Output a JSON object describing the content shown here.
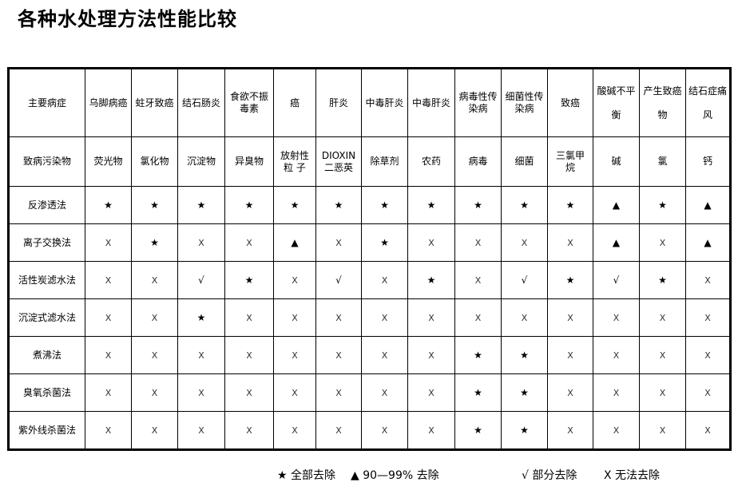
{
  "title": "各种水处理方法性能比较",
  "header_row1": {
    "label": "主要病症",
    "cells": [
      "乌脚病癌",
      "蛀牙致癌",
      "结石肠炎",
      "食欲不振\n毒素",
      "癌",
      "肝炎",
      "中毒肝炎",
      "中毒肝炎",
      "病毒性传\n染病",
      "细菌性传\n染病",
      "致癌",
      "酸碱不平\n\n衡",
      "产生致癌\n\n物",
      "结石症痛\n\n风"
    ]
  },
  "header_row2": {
    "label": "致病污染物",
    "cells": [
      "荧光物",
      "氯化物",
      "沉淀物",
      "异臭物",
      "放射性\n粒 子",
      "DIOXIN\n二恶英",
      "除草剂",
      "农药",
      "病毒",
      "细菌",
      "三氯甲\n烷",
      "碱",
      "氯",
      "钙"
    ]
  },
  "rows": [
    {
      "method": "反渗透法",
      "cells": [
        "★",
        "★",
        "★",
        "★",
        "★",
        "★",
        "★",
        "★",
        "★",
        "★",
        "★",
        "▲",
        "★",
        "▲"
      ]
    },
    {
      "method": "离子交换法",
      "cells": [
        "X",
        "★",
        "X",
        "X",
        "▲",
        "X",
        "★",
        "X",
        "X",
        "X",
        "X",
        "▲",
        "X",
        "▲"
      ]
    },
    {
      "method": "活性炭滤水法",
      "cells": [
        "X",
        "X",
        "√",
        "★",
        "X",
        "√",
        "X",
        "★",
        "X",
        "√",
        "★",
        "√",
        "★",
        "X"
      ]
    },
    {
      "method": "沉淀式滤水法",
      "cells": [
        "X",
        "X",
        "★",
        "X",
        "X",
        "X",
        "X",
        "X",
        "X",
        "X",
        "X",
        "X",
        "X",
        "X"
      ]
    },
    {
      "method": "煮沸法",
      "cells": [
        "X",
        "X",
        "X",
        "X",
        "X",
        "X",
        "X",
        "X",
        "★",
        "★",
        "X",
        "X",
        "X",
        "X"
      ]
    },
    {
      "method": "臭氧杀菌法",
      "cells": [
        "X",
        "X",
        "X",
        "X",
        "X",
        "X",
        "X",
        "X",
        "★",
        "★",
        "X",
        "X",
        "X",
        "X"
      ]
    },
    {
      "method": "紫外线杀菌法",
      "cells": [
        "X",
        "X",
        "X",
        "X",
        "X",
        "X",
        "X",
        "X",
        "★",
        "★",
        "X",
        "X",
        "X",
        "X"
      ]
    }
  ],
  "legend": {
    "full": "★ 全部去除",
    "partial90": "▲ 90—99% 去除",
    "partial": "√ 部分去除",
    "none": "X  无法去除"
  }
}
